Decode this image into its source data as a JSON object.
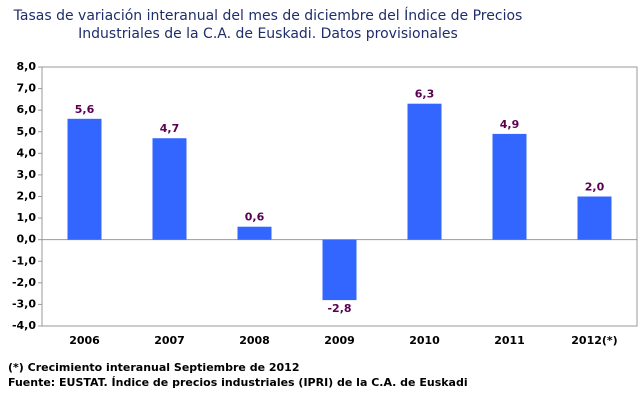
{
  "chart_data": {
    "type": "bar",
    "title": [
      "Tasas de variación interanual del mes de diciembre del Índice de Precios",
      "Industriales de la C.A. de Euskadi. Datos provisionales"
    ],
    "categories": [
      "2006",
      "2007",
      "2008",
      "2009",
      "2010",
      "2011",
      "2012(*)"
    ],
    "values": [
      5.6,
      4.7,
      0.6,
      -2.8,
      6.3,
      4.9,
      2.0
    ],
    "value_labels": [
      "5,6",
      "4,7",
      "0,6",
      "-2,8",
      "6,3",
      "4,9",
      "2,0"
    ],
    "color": "#3366ff",
    "ylim": [
      -4,
      8
    ],
    "yticks": [
      {
        "value": -4,
        "label": "-4,0"
      },
      {
        "value": -3,
        "label": "-3,0"
      },
      {
        "value": -2,
        "label": "-2,0"
      },
      {
        "value": -1,
        "label": "-1,0"
      },
      {
        "value": 0,
        "label": "0,0"
      },
      {
        "value": 1,
        "label": "1,0"
      },
      {
        "value": 2,
        "label": "2,0"
      },
      {
        "value": 3,
        "label": "3,0"
      },
      {
        "value": 4,
        "label": "4,0"
      },
      {
        "value": 5,
        "label": "5,0"
      },
      {
        "value": 6,
        "label": "6,0"
      },
      {
        "value": 7,
        "label": "7,0"
      },
      {
        "value": 8,
        "label": "8,0"
      }
    ],
    "grid": false,
    "notes": [
      "(*) Crecimiento interanual Septiembre de 2012",
      "Fuente: EUSTAT. Índice de precios industriales (IPRI) de la C.A. de Euskadi"
    ]
  }
}
